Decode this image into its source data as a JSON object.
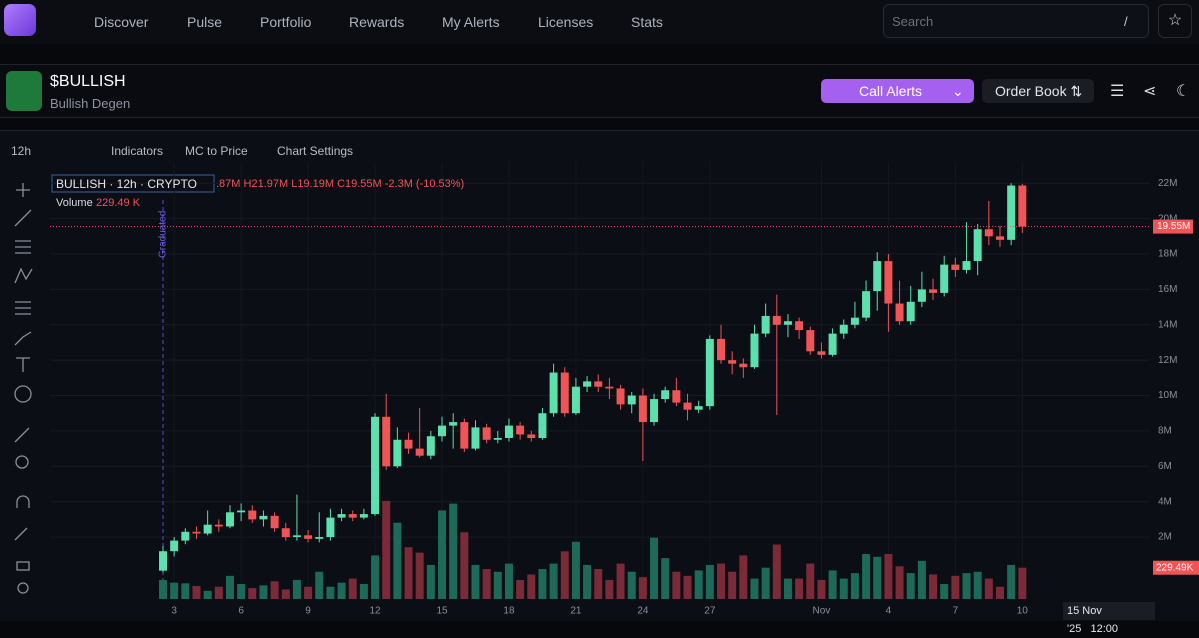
{
  "nav": {
    "items": [
      "Discover",
      "Pulse",
      "Portfolio",
      "Rewards",
      "My Alerts",
      "Licenses",
      "Stats"
    ],
    "search": "Search",
    "search_key": "/"
  },
  "token": {
    "symbol": "$BULLISH",
    "name": "Bullish Degen"
  },
  "buttons": {
    "call_alerts": "Call Alerts",
    "order_book": "Order Book"
  },
  "toolbar": {
    "interval": "12h",
    "indicators": "Indicators",
    "mc_to_price": "MC to Price",
    "chart_settings": "Chart Settings"
  },
  "chart_data": {
    "type": "candlestick",
    "legend": {
      "pair": "BULLISH · 12h · CRYPTO",
      "ohlc_text": ".87M H21.97M L19.19M C19.55M -2.3M (-10.53%)",
      "volume": "Volume",
      "volume_value": "229.49 K"
    },
    "annotation": "Graduated",
    "categories": [
      null,
      "3",
      null,
      null,
      null,
      null,
      null,
      "6",
      null,
      null,
      null,
      null,
      null,
      "9",
      null,
      null,
      null,
      null,
      null,
      "12",
      null,
      null,
      null,
      null,
      null,
      "15",
      null,
      null,
      null,
      null,
      null,
      "18",
      null,
      null,
      null,
      null,
      null,
      "21",
      null,
      null,
      null,
      null,
      null,
      "24",
      null,
      null,
      null,
      null,
      null,
      "27",
      null,
      null,
      null,
      null,
      null,
      null,
      null,
      null,
      null,
      "Nov",
      null,
      null,
      null,
      null,
      null,
      "4",
      null,
      null,
      null,
      null,
      null,
      "7",
      null,
      null,
      null,
      null,
      null,
      "10"
    ],
    "ohlc": [
      [
        0.1,
        1.5,
        0.0,
        1.2
      ],
      [
        1.2,
        2.0,
        0.9,
        1.8
      ],
      [
        1.8,
        2.5,
        1.6,
        2.3
      ],
      [
        2.3,
        2.6,
        1.9,
        2.2
      ],
      [
        2.2,
        3.5,
        2.1,
        2.7
      ],
      [
        2.7,
        3.0,
        2.3,
        2.6
      ],
      [
        2.6,
        3.8,
        2.5,
        3.4
      ],
      [
        3.4,
        3.9,
        2.9,
        3.5
      ],
      [
        3.5,
        3.8,
        2.8,
        3.0
      ],
      [
        3.0,
        3.5,
        2.6,
        3.2
      ],
      [
        3.2,
        3.4,
        2.3,
        2.5
      ],
      [
        2.5,
        2.8,
        1.8,
        2.0
      ],
      [
        2.0,
        4.4,
        1.8,
        2.1
      ],
      [
        2.1,
        2.4,
        1.7,
        1.9
      ],
      [
        1.9,
        3.4,
        1.7,
        2.0
      ],
      [
        2.0,
        3.6,
        1.8,
        3.1
      ],
      [
        3.1,
        3.6,
        2.9,
        3.3
      ],
      [
        3.3,
        3.5,
        2.9,
        3.1
      ],
      [
        3.1,
        3.6,
        3.0,
        3.3
      ],
      [
        3.3,
        9.0,
        3.2,
        8.8
      ],
      [
        8.8,
        10.1,
        5.8,
        6.0
      ],
      [
        6.0,
        8.2,
        5.9,
        7.5
      ],
      [
        7.5,
        7.9,
        6.7,
        7.0
      ],
      [
        7.0,
        9.3,
        6.5,
        6.6
      ],
      [
        6.6,
        8.0,
        6.4,
        7.7
      ],
      [
        7.7,
        8.8,
        7.4,
        8.3
      ],
      [
        8.3,
        9.0,
        7.0,
        8.5
      ],
      [
        8.5,
        8.7,
        6.8,
        7.0
      ],
      [
        7.0,
        8.6,
        6.9,
        8.2
      ],
      [
        8.2,
        8.4,
        7.3,
        7.5
      ],
      [
        7.5,
        8.0,
        7.3,
        7.6
      ],
      [
        7.6,
        8.7,
        7.4,
        8.3
      ],
      [
        8.3,
        8.5,
        7.5,
        7.8
      ],
      [
        7.8,
        8.0,
        7.4,
        7.6
      ],
      [
        7.6,
        9.3,
        7.5,
        9.0
      ],
      [
        9.0,
        11.8,
        8.8,
        11.3
      ],
      [
        11.3,
        11.6,
        8.8,
        9.0
      ],
      [
        9.0,
        11.0,
        8.9,
        10.5
      ],
      [
        10.5,
        11.1,
        10.2,
        10.8
      ],
      [
        10.8,
        11.2,
        10.2,
        10.5
      ],
      [
        10.5,
        11.0,
        9.8,
        10.4
      ],
      [
        10.4,
        10.6,
        9.2,
        9.5
      ],
      [
        9.5,
        10.2,
        9.0,
        10.0
      ],
      [
        10.0,
        10.4,
        6.3,
        8.5
      ],
      [
        8.5,
        10.1,
        8.3,
        9.8
      ],
      [
        9.8,
        10.5,
        9.6,
        10.3
      ],
      [
        10.3,
        11.0,
        9.4,
        9.6
      ],
      [
        9.6,
        10.1,
        8.6,
        9.2
      ],
      [
        9.2,
        9.7,
        9.0,
        9.4
      ],
      [
        9.4,
        13.4,
        9.2,
        13.2
      ],
      [
        13.2,
        14.0,
        11.8,
        12.0
      ],
      [
        12.0,
        12.5,
        11.2,
        11.8
      ],
      [
        11.8,
        12.1,
        11.0,
        11.6
      ],
      [
        11.6,
        14.0,
        11.5,
        13.5
      ],
      [
        13.5,
        15.2,
        13.3,
        14.5
      ],
      [
        14.5,
        15.7,
        8.9,
        14.0
      ],
      [
        14.0,
        14.6,
        13.3,
        14.2
      ],
      [
        14.2,
        14.4,
        13.2,
        13.7
      ],
      [
        13.7,
        13.9,
        12.3,
        12.5
      ],
      [
        12.5,
        13.0,
        12.1,
        12.3
      ],
      [
        12.3,
        13.8,
        12.2,
        13.5
      ],
      [
        13.5,
        14.3,
        13.2,
        14.0
      ],
      [
        14.0,
        15.3,
        13.8,
        14.4
      ],
      [
        14.4,
        16.5,
        14.2,
        15.9
      ],
      [
        15.9,
        18.1,
        14.8,
        17.6
      ],
      [
        17.6,
        18.0,
        13.6,
        15.2
      ],
      [
        15.2,
        16.5,
        14.0,
        14.2
      ],
      [
        14.2,
        16.2,
        14.0,
        15.3
      ],
      [
        15.3,
        17.0,
        15.0,
        16.0
      ],
      [
        16.0,
        16.6,
        15.4,
        15.8
      ],
      [
        15.8,
        17.9,
        15.6,
        17.4
      ],
      [
        17.4,
        17.8,
        16.7,
        17.1
      ],
      [
        17.1,
        19.8,
        16.9,
        17.6
      ],
      [
        17.6,
        19.7,
        16.8,
        19.4
      ],
      [
        19.4,
        21.0,
        18.5,
        19.0
      ],
      [
        19.0,
        19.6,
        18.4,
        18.8
      ],
      [
        18.8,
        22.0,
        18.5,
        21.87
      ],
      [
        21.87,
        21.97,
        19.19,
        19.55
      ]
    ],
    "volume": [
      140,
      120,
      115,
      95,
      60,
      90,
      170,
      110,
      80,
      100,
      130,
      70,
      140,
      90,
      200,
      90,
      120,
      150,
      110,
      320,
      720,
      560,
      380,
      340,
      250,
      650,
      700,
      490,
      250,
      220,
      200,
      260,
      140,
      180,
      220,
      260,
      350,
      420,
      250,
      220,
      140,
      260,
      200,
      160,
      450,
      300,
      200,
      170,
      210,
      250,
      260,
      200,
      320,
      150,
      230,
      400,
      150,
      150,
      260,
      140,
      210,
      150,
      190,
      330,
      310,
      330,
      240,
      190,
      280,
      180,
      110,
      170,
      190,
      200,
      150,
      90,
      250,
      229.49
    ],
    "ylim": [
      -1.5,
      23.2
    ],
    "yticks": [
      {
        "value": 2,
        "label": "2M"
      },
      {
        "value": 4,
        "label": "4M"
      },
      {
        "value": 6,
        "label": "6M"
      },
      {
        "value": 8,
        "label": "8M"
      },
      {
        "value": 10,
        "label": "10M"
      },
      {
        "value": 12,
        "label": "12M"
      },
      {
        "value": 14,
        "label": "14M"
      },
      {
        "value": 16,
        "label": "16M"
      },
      {
        "value": 18,
        "label": "18M"
      },
      {
        "value": 20,
        "label": "20M"
      },
      {
        "value": 22,
        "label": "22M"
      }
    ],
    "volume_lim": [
      0,
      800
    ],
    "last_price_label": "19.55M",
    "last_volume_label": "229.49K",
    "crosshair_date": "15 Nov '25",
    "crosshair_time": "12:00",
    "up_color": "#5ce0ad",
    "down_color": "#ef5456",
    "volume_up_color": "#1d6a58",
    "volume_down_color": "#7b2a37",
    "grid": true
  }
}
